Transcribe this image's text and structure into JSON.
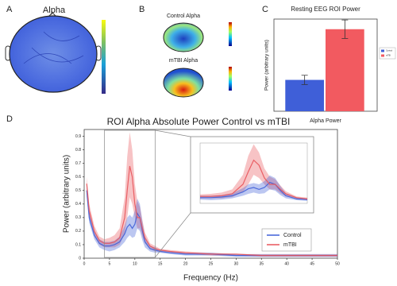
{
  "figure": {
    "panel_labels": [
      "A",
      "B",
      "C",
      "D"
    ],
    "topomap_title": "Alpha",
    "topomap_group_titles": [
      "Control Alpha",
      "mTBI Alpha"
    ]
  },
  "chart_data": [
    {
      "type": "bar",
      "title": "Resting EEG ROI Power",
      "y_label": "Power (arbitrary units)",
      "categories": [
        "Alpha Power"
      ],
      "ylim": [
        0,
        1
      ],
      "series": [
        {
          "name": "Control",
          "color": "#3f5fd8",
          "values": [
            0.34
          ],
          "errors": [
            0.05
          ]
        },
        {
          "name": "mTBI",
          "color": "#f25a60",
          "values": [
            0.89
          ],
          "errors": [
            0.1
          ]
        }
      ]
    },
    {
      "type": "line",
      "title": "ROI Alpha Absolute Power Control vs mTBI",
      "x_label": "Frequency (Hz)",
      "y_label": "Power (arbitrary units)",
      "xlim": [
        0,
        50
      ],
      "ylim": [
        0,
        0.95
      ],
      "xticks": [
        0,
        5,
        10,
        15,
        20,
        25,
        30,
        35,
        40,
        45,
        50
      ],
      "yticks": [
        0,
        0.1,
        0.2,
        0.3,
        0.4,
        0.5,
        0.6,
        0.7,
        0.8,
        0.9
      ],
      "zoom_xlim": [
        4,
        14
      ],
      "x": [
        0.5,
        1,
        2,
        3,
        4,
        5,
        6,
        7,
        8,
        8.5,
        9,
        9.5,
        10,
        10.5,
        11,
        11.5,
        12,
        13,
        14,
        15,
        17,
        20,
        25,
        30,
        35,
        40,
        45,
        50
      ],
      "series": [
        {
          "name": "Control",
          "color": "#3f5fd8",
          "values": [
            0.5,
            0.3,
            0.17,
            0.11,
            0.09,
            0.09,
            0.1,
            0.12,
            0.18,
            0.23,
            0.25,
            0.22,
            0.25,
            0.33,
            0.3,
            0.2,
            0.12,
            0.07,
            0.06,
            0.05,
            0.04,
            0.03,
            0.03,
            0.02,
            0.02,
            0.02,
            0.02,
            0.02
          ],
          "upper": [
            0.55,
            0.34,
            0.2,
            0.14,
            0.12,
            0.12,
            0.13,
            0.16,
            0.24,
            0.3,
            0.32,
            0.3,
            0.35,
            0.44,
            0.4,
            0.27,
            0.16,
            0.09,
            0.08,
            0.06,
            0.05,
            0.04,
            0.04,
            0.03,
            0.03,
            0.03,
            0.03,
            0.03
          ],
          "lower": [
            0.45,
            0.26,
            0.14,
            0.08,
            0.06,
            0.05,
            0.06,
            0.08,
            0.12,
            0.15,
            0.17,
            0.15,
            0.16,
            0.22,
            0.2,
            0.13,
            0.08,
            0.05,
            0.04,
            0.04,
            0.03,
            0.02,
            0.02,
            0.01,
            0.01,
            0.01,
            0.01,
            0.01
          ]
        },
        {
          "name": "mTBI",
          "color": "#e8545a",
          "values": [
            0.55,
            0.35,
            0.2,
            0.13,
            0.11,
            0.11,
            0.12,
            0.15,
            0.3,
            0.5,
            0.68,
            0.6,
            0.4,
            0.3,
            0.3,
            0.22,
            0.15,
            0.09,
            0.07,
            0.06,
            0.05,
            0.04,
            0.03,
            0.03,
            0.02,
            0.02,
            0.02,
            0.02
          ],
          "upper": [
            0.6,
            0.4,
            0.24,
            0.16,
            0.14,
            0.15,
            0.17,
            0.22,
            0.45,
            0.75,
            0.93,
            0.8,
            0.55,
            0.42,
            0.38,
            0.28,
            0.19,
            0.11,
            0.09,
            0.07,
            0.06,
            0.05,
            0.04,
            0.03,
            0.03,
            0.03,
            0.03,
            0.03
          ],
          "lower": [
            0.5,
            0.3,
            0.16,
            0.1,
            0.08,
            0.08,
            0.08,
            0.1,
            0.18,
            0.3,
            0.45,
            0.4,
            0.3,
            0.22,
            0.22,
            0.16,
            0.11,
            0.07,
            0.05,
            0.05,
            0.04,
            0.03,
            0.02,
            0.02,
            0.01,
            0.01,
            0.01,
            0.01
          ]
        }
      ]
    }
  ]
}
